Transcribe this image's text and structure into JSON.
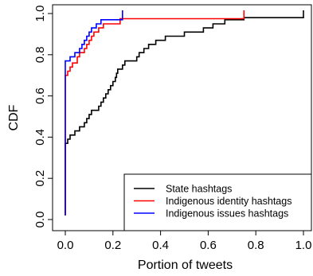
{
  "chart_data": {
    "type": "line",
    "subtype": "step-cdf",
    "xlabel": "Portion of tweets",
    "ylabel": "CDF",
    "xlim": [
      0,
      1
    ],
    "ylim": [
      0,
      1
    ],
    "xticks": [
      "0.0",
      "0.2",
      "0.4",
      "0.6",
      "0.8",
      "1.0"
    ],
    "yticks": [
      "0.0",
      "0.2",
      "0.4",
      "0.6",
      "0.8",
      "1.0"
    ],
    "grid": false,
    "legend_position": "bottom-right",
    "series": [
      {
        "name": "State hashtags",
        "color": "#000000",
        "points": [
          [
            0.0,
            0.02
          ],
          [
            0.0,
            0.37
          ],
          [
            0.01,
            0.39
          ],
          [
            0.02,
            0.41
          ],
          [
            0.04,
            0.43
          ],
          [
            0.06,
            0.45
          ],
          [
            0.08,
            0.47
          ],
          [
            0.09,
            0.49
          ],
          [
            0.1,
            0.51
          ],
          [
            0.11,
            0.53
          ],
          [
            0.14,
            0.55
          ],
          [
            0.15,
            0.57
          ],
          [
            0.16,
            0.59
          ],
          [
            0.17,
            0.61
          ],
          [
            0.18,
            0.63
          ],
          [
            0.19,
            0.65
          ],
          [
            0.2,
            0.67
          ],
          [
            0.21,
            0.69
          ],
          [
            0.215,
            0.71
          ],
          [
            0.22,
            0.73
          ],
          [
            0.24,
            0.75
          ],
          [
            0.25,
            0.77
          ],
          [
            0.3,
            0.79
          ],
          [
            0.31,
            0.81
          ],
          [
            0.33,
            0.83
          ],
          [
            0.35,
            0.85
          ],
          [
            0.38,
            0.87
          ],
          [
            0.42,
            0.89
          ],
          [
            0.5,
            0.91
          ],
          [
            0.58,
            0.93
          ],
          [
            0.62,
            0.95
          ],
          [
            0.67,
            0.97
          ],
          [
            0.75,
            0.98
          ],
          [
            1.0,
            1.0
          ]
        ]
      },
      {
        "name": "Indigenous identity hashtags",
        "color": "#ff0000",
        "points": [
          [
            0.0,
            0.02
          ],
          [
            0.0,
            0.7
          ],
          [
            0.01,
            0.72
          ],
          [
            0.02,
            0.74
          ],
          [
            0.03,
            0.76
          ],
          [
            0.05,
            0.79
          ],
          [
            0.06,
            0.81
          ],
          [
            0.08,
            0.83
          ],
          [
            0.09,
            0.85
          ],
          [
            0.1,
            0.87
          ],
          [
            0.11,
            0.89
          ],
          [
            0.12,
            0.91
          ],
          [
            0.14,
            0.93
          ],
          [
            0.16,
            0.95
          ],
          [
            0.23,
            0.975
          ],
          [
            0.75,
            1.0
          ]
        ]
      },
      {
        "name": "Indigenous issues hashtags",
        "color": "#0000ff",
        "points": [
          [
            0.0,
            0.02
          ],
          [
            0.0,
            0.77
          ],
          [
            0.02,
            0.79
          ],
          [
            0.04,
            0.81
          ],
          [
            0.06,
            0.83
          ],
          [
            0.07,
            0.85
          ],
          [
            0.08,
            0.87
          ],
          [
            0.09,
            0.89
          ],
          [
            0.1,
            0.91
          ],
          [
            0.11,
            0.93
          ],
          [
            0.13,
            0.95
          ],
          [
            0.15,
            0.97
          ],
          [
            0.24,
            1.0
          ]
        ]
      }
    ]
  }
}
